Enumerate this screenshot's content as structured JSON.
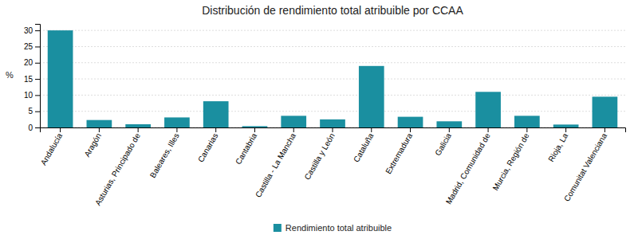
{
  "chart_data": {
    "type": "bar",
    "title": "Distribución de rendimiento total atribuible por CCAA",
    "categories": [
      "Andalucía",
      "Aragón",
      "Asturias, Principado de",
      "Baleares, Illes",
      "Canarias",
      "Cantabria",
      "Castilla - La Mancha",
      "Castilla y León",
      "Cataluña",
      "Extremadura",
      "Galicia",
      "Madrid, Comunidad de",
      "Murcia, Región de",
      "Rioja, La",
      "Comunitat Valenciana"
    ],
    "series": [
      {
        "name": "Rendimiento total atribuible",
        "color": "#1a8fa0",
        "values": [
          30.0,
          2.3,
          1.0,
          3.1,
          8.1,
          0.4,
          3.6,
          2.5,
          19.0,
          3.3,
          1.9,
          11.0,
          3.6,
          0.9,
          9.5
        ]
      }
    ],
    "ylabel": "%",
    "ylim": [
      0,
      32
    ],
    "yticks": [
      0,
      5,
      10,
      15,
      20,
      25,
      30
    ],
    "grid": true,
    "legend": "bottom"
  }
}
